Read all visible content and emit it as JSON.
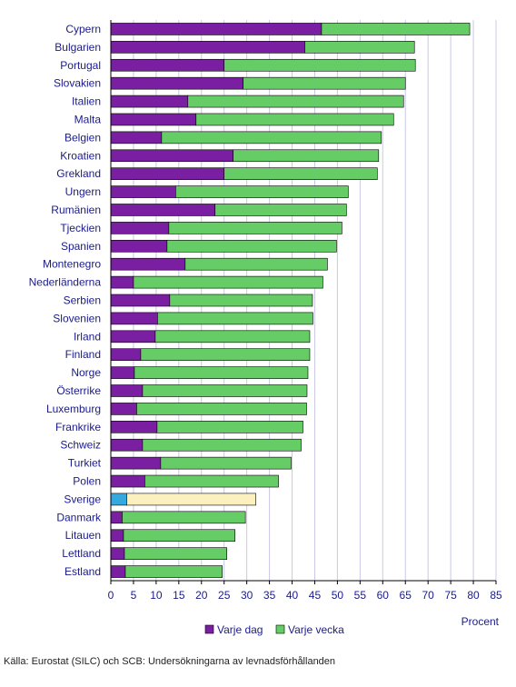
{
  "colors": {
    "text": "#1a1a8c",
    "grid": "#c8c8e6",
    "axis": "#000000",
    "daily": "#7a1fa2",
    "weekly": "#66cc66",
    "highlight_daily": "#33a9e0",
    "highlight_weekly": "#fdf0bf",
    "bar_outline": "#000000"
  },
  "chart_data": {
    "type": "bar",
    "orientation": "horizontal",
    "stacked": true,
    "categories": [
      "Cypern",
      "Bulgarien",
      "Portugal",
      "Slovakien",
      "Italien",
      "Malta",
      "Belgien",
      "Kroatien",
      "Grekland",
      "Ungern",
      "Rumänien",
      "Tjeckien",
      "Spanien",
      "Montenegro",
      "Nederländerna",
      "Serbien",
      "Slovenien",
      "Irland",
      "Finland",
      "Norge",
      "Österrike",
      "Luxemburg",
      "Frankrike",
      "Schweiz",
      "Turkiet",
      "Polen",
      "Sverige",
      "Danmark",
      "Litauen",
      "Lettland",
      "Estland"
    ],
    "highlight": "Sverige",
    "series": [
      {
        "name": "Varje dag",
        "values": [
          46.5,
          42.8,
          25.0,
          29.2,
          17.0,
          18.8,
          11.2,
          27.0,
          25.0,
          14.3,
          23.0,
          12.8,
          12.4,
          16.4,
          5.0,
          13.0,
          10.3,
          9.8,
          6.6,
          5.2,
          7.0,
          5.7,
          10.2,
          7.0,
          11.0,
          7.5,
          3.5,
          2.5,
          2.8,
          3.0,
          3.2
        ]
      },
      {
        "name": "Varje vecka",
        "values": [
          32.7,
          24.2,
          42.2,
          35.8,
          47.6,
          43.6,
          48.5,
          32.1,
          33.8,
          38.1,
          29.0,
          38.2,
          37.4,
          31.4,
          41.8,
          31.5,
          34.3,
          34.1,
          37.3,
          38.3,
          36.3,
          37.5,
          32.2,
          35.0,
          28.8,
          29.5,
          28.5,
          27.2,
          24.6,
          22.6,
          21.4
        ]
      }
    ],
    "xlabel": "Procent",
    "ylabel": "",
    "xlim": [
      0,
      85
    ],
    "xticks": [
      0,
      5,
      10,
      15,
      20,
      25,
      30,
      35,
      40,
      45,
      50,
      55,
      60,
      65,
      70,
      75,
      80,
      85
    ],
    "grid": true,
    "legend_position": "bottom"
  },
  "legend": {
    "items": [
      {
        "label": "Varje dag"
      },
      {
        "label": "Varje vecka"
      }
    ]
  },
  "source": "Källa: Eurostat (SILC) och SCB: Undersökningarna av levnadsförhållanden"
}
